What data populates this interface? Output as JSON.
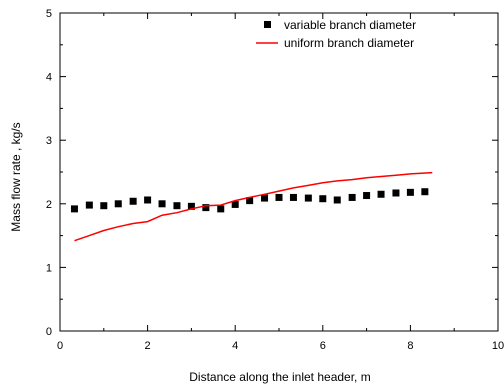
{
  "chart_data": {
    "type": "scatter",
    "xlabel": "Distance along the inlet header, m",
    "ylabel": "Mass flow rate , kg/s",
    "xlim": [
      0,
      10
    ],
    "ylim": [
      0,
      5
    ],
    "x_ticks": [
      "0",
      "2",
      "4",
      "6",
      "8",
      "10"
    ],
    "y_ticks": [
      "0",
      "1",
      "2",
      "3",
      "4",
      "5"
    ],
    "grid": false,
    "legend_position": "top-right",
    "series": [
      {
        "name": "variable branch diameter",
        "style": "square-markers",
        "color": "#000000",
        "points": [
          [
            0.33,
            1.92
          ],
          [
            0.67,
            1.98
          ],
          [
            1.0,
            1.97
          ],
          [
            1.33,
            2.0
          ],
          [
            1.67,
            2.04
          ],
          [
            2.0,
            2.06
          ],
          [
            2.33,
            2.0
          ],
          [
            2.67,
            1.97
          ],
          [
            3.0,
            1.96
          ],
          [
            3.33,
            1.94
          ],
          [
            3.67,
            1.92
          ],
          [
            4.0,
            1.99
          ],
          [
            4.33,
            2.05
          ],
          [
            4.67,
            2.09
          ],
          [
            5.0,
            2.1
          ],
          [
            5.33,
            2.1
          ],
          [
            5.67,
            2.09
          ],
          [
            6.0,
            2.08
          ],
          [
            6.33,
            2.06
          ],
          [
            6.67,
            2.1
          ],
          [
            7.0,
            2.13
          ],
          [
            7.33,
            2.15
          ],
          [
            7.67,
            2.17
          ],
          [
            8.0,
            2.18
          ],
          [
            8.33,
            2.19
          ]
        ]
      },
      {
        "name": "uniform branch diameter",
        "style": "line",
        "color": "#ff0000",
        "points": [
          [
            0.33,
            1.42
          ],
          [
            0.67,
            1.5
          ],
          [
            1.0,
            1.58
          ],
          [
            1.33,
            1.64
          ],
          [
            1.67,
            1.69
          ],
          [
            2.0,
            1.72
          ],
          [
            2.33,
            1.82
          ],
          [
            2.67,
            1.86
          ],
          [
            3.0,
            1.92
          ],
          [
            3.33,
            1.97
          ],
          [
            3.67,
            1.98
          ],
          [
            4.0,
            2.05
          ],
          [
            4.33,
            2.1
          ],
          [
            4.67,
            2.15
          ],
          [
            5.0,
            2.2
          ],
          [
            5.33,
            2.25
          ],
          [
            5.67,
            2.29
          ],
          [
            6.0,
            2.33
          ],
          [
            6.33,
            2.36
          ],
          [
            6.67,
            2.38
          ],
          [
            7.0,
            2.41
          ],
          [
            7.33,
            2.43
          ],
          [
            7.67,
            2.45
          ],
          [
            8.0,
            2.47
          ],
          [
            8.5,
            2.49
          ]
        ]
      }
    ]
  }
}
